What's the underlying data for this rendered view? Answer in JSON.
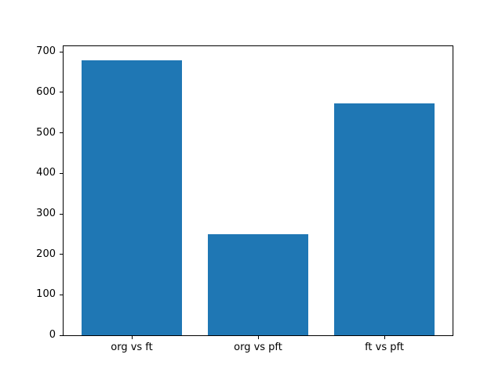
{
  "chart_data": {
    "type": "bar",
    "categories": [
      "org vs ft",
      "org vs pft",
      "ft vs pft"
    ],
    "values": [
      680,
      250,
      572
    ],
    "title": "",
    "xlabel": "",
    "ylabel": "",
    "ylim": [
      0,
      714
    ],
    "yticks": [
      0,
      100,
      200,
      300,
      400,
      500,
      600,
      700
    ],
    "bar_width_units": 0.8,
    "bar_color": "#1f77b4",
    "grid": false,
    "legend": null
  },
  "colors": {
    "background": "#ffffff",
    "spine": "#000000",
    "text": "#000000"
  }
}
